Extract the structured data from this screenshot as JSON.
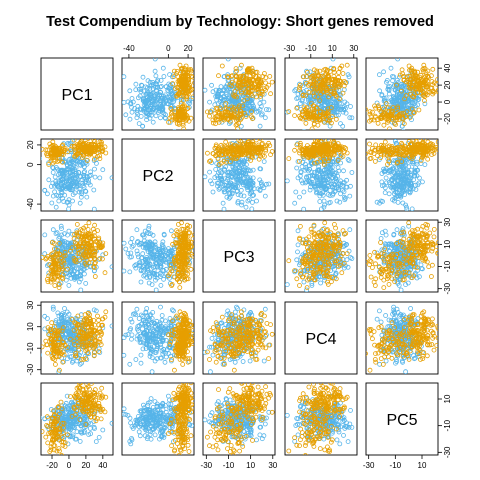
{
  "chart_data": {
    "type": "scatter",
    "title": "Test Compendium by Technology: Short genes removed",
    "variables": [
      "PC1",
      "PC2",
      "PC3",
      "PC4",
      "PC5"
    ],
    "layout": "scatterplot-matrix",
    "grid": false,
    "legend": "none",
    "groups": [
      {
        "color": "#56B4E9"
      },
      {
        "color": "#E69F00"
      }
    ],
    "axes": {
      "PC1": {
        "range": [
          -33,
          52
        ],
        "ticks": [
          -20,
          0,
          20,
          40
        ],
        "side": "bottom"
      },
      "PC2": {
        "range": [
          -47,
          26
        ],
        "ticks": [
          -40,
          0,
          20
        ],
        "side": "top+left"
      },
      "PC3": {
        "range": [
          -33,
          32
        ],
        "ticks": [
          -30,
          -10,
          10,
          30
        ],
        "side": "bottom+right"
      },
      "PC4": {
        "range": [
          -34,
          33
        ],
        "ticks": [
          -30,
          -10,
          10,
          30
        ],
        "side": "top+left"
      },
      "PC5": {
        "range": [
          -32,
          22
        ],
        "ticks": [
          -30,
          -10,
          10
        ],
        "side": "bottom+right"
      }
    },
    "tick_label_text": {
      "PC1": [
        "-20",
        "0",
        "20",
        "40"
      ],
      "PC2": [
        "-40",
        "0",
        "20"
      ],
      "PC3": [
        "-30",
        "-10",
        "10",
        "30"
      ],
      "PC4": [
        "-30",
        "-10",
        "10",
        "30"
      ],
      "PC5": [
        "-30",
        "-10",
        "10"
      ]
    },
    "extra_tick_labels": {
      "top_col5": [
        "40",
        "20",
        "0",
        "-20"
      ]
    },
    "clusters": [
      {
        "group": 0,
        "center": [
          5,
          -8,
          -5,
          0,
          -4
        ],
        "spread": [
          14,
          14,
          10,
          11,
          7
        ],
        "n": 190
      },
      {
        "group": 0,
        "center": [
          -10,
          -20,
          5,
          8,
          -8
        ],
        "spread": [
          9,
          10,
          9,
          9,
          7
        ],
        "n": 70
      },
      {
        "group": 1,
        "center": [
          22,
          16,
          8,
          2,
          8
        ],
        "spread": [
          10,
          4,
          9,
          10,
          6
        ],
        "n": 150
      },
      {
        "group": 1,
        "center": [
          -15,
          12,
          -10,
          -5,
          -15
        ],
        "spread": [
          7,
          4,
          8,
          9,
          8
        ],
        "n": 90
      }
    ]
  }
}
